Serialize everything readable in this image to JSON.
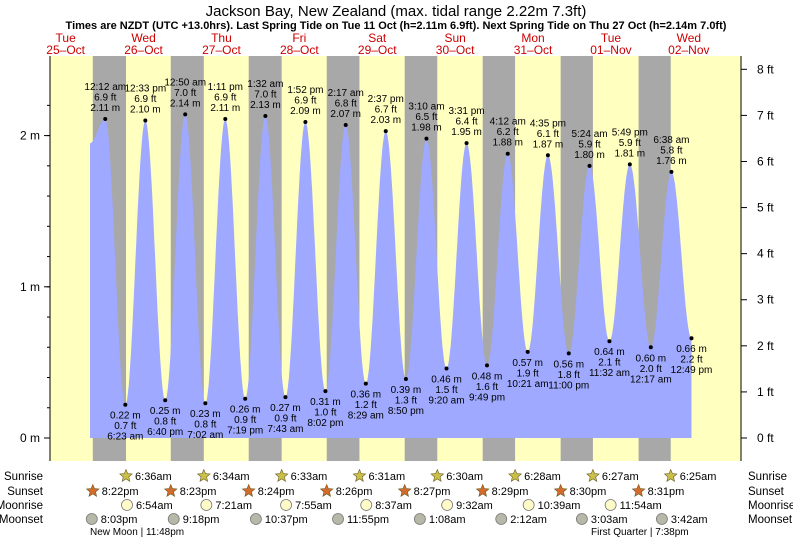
{
  "title": "Jackson Bay, New Zealand (max. tidal range 2.22m 7.3ft)",
  "subtitle": "Times are NZDT (UTC +13.0hrs). Last Spring Tide on Tue 11 Oct (h=2.11m 6.9ft). Next Spring Tide on Thu 27 Oct (h=2.14m 7.0ft)",
  "colors": {
    "day": "#ffffc0",
    "night": "#a8a8a8",
    "tide": "#9ea9ff",
    "date_text": "#cc0000",
    "sunrise_star": "#c9c04a",
    "sunset_star": "#d36b2c",
    "moonrise": "#fffbc8",
    "moonset": "#b8b8a8"
  },
  "chart_data": {
    "type": "area",
    "title": "Jackson Bay, New Zealand (max. tidal range 2.22m 7.3ft)",
    "ylabel_left_unit": "m",
    "ylabel_right_unit": "ft",
    "ylim_m": [
      0,
      2.22
    ],
    "left_ticks": [
      "0 m",
      "1 m",
      "2 m"
    ],
    "right_ticks": [
      "0 ft",
      "1 ft",
      "2 ft",
      "3 ft",
      "4 ft",
      "5 ft",
      "6 ft",
      "7 ft",
      "8 ft"
    ],
    "days": [
      {
        "dow": "Tue",
        "date": "25–Oct"
      },
      {
        "dow": "Wed",
        "date": "26–Oct"
      },
      {
        "dow": "Thu",
        "date": "27–Oct"
      },
      {
        "dow": "Fri",
        "date": "28–Oct"
      },
      {
        "dow": "Sat",
        "date": "29–Oct"
      },
      {
        "dow": "Sun",
        "date": "30–Oct"
      },
      {
        "dow": "Mon",
        "date": "31–Oct"
      },
      {
        "dow": "Tue",
        "date": "01–Nov"
      },
      {
        "dow": "Wed",
        "date": "02–Nov"
      }
    ],
    "tides": [
      {
        "type": "high",
        "day": 1,
        "time": "12:12 am",
        "m": "2.11 m",
        "ft": "6.9 ft",
        "h": 2.11
      },
      {
        "type": "low",
        "day": 1,
        "time": "6:23 am",
        "m": "0.22 m",
        "ft": "0.7 ft",
        "h": 0.22
      },
      {
        "type": "high",
        "day": 1,
        "time": "12:33 pm",
        "m": "2.10 m",
        "ft": "6.9 ft",
        "h": 2.1
      },
      {
        "type": "low",
        "day": 1,
        "time": "6:40 pm",
        "m": "0.25 m",
        "ft": "0.8 ft",
        "h": 0.25
      },
      {
        "type": "high",
        "day": 2,
        "time": "12:50 am",
        "m": "2.14 m",
        "ft": "7.0 ft",
        "h": 2.14
      },
      {
        "type": "low",
        "day": 2,
        "time": "7:02 am",
        "m": "0.23 m",
        "ft": "0.8 ft",
        "h": 0.23
      },
      {
        "type": "high",
        "day": 2,
        "time": "1:11 pm",
        "m": "2.11 m",
        "ft": "6.9 ft",
        "h": 2.11
      },
      {
        "type": "low",
        "day": 2,
        "time": "7:19 pm",
        "m": "0.26 m",
        "ft": "0.9 ft",
        "h": 0.26
      },
      {
        "type": "high",
        "day": 3,
        "time": "1:32 am",
        "m": "2.13 m",
        "ft": "7.0 ft",
        "h": 2.13
      },
      {
        "type": "low",
        "day": 3,
        "time": "7:43 am",
        "m": "0.27 m",
        "ft": "0.9 ft",
        "h": 0.27
      },
      {
        "type": "high",
        "day": 3,
        "time": "1:52 pm",
        "m": "2.09 m",
        "ft": "6.9 ft",
        "h": 2.09
      },
      {
        "type": "low",
        "day": 3,
        "time": "8:02 pm",
        "m": "0.31 m",
        "ft": "1.0 ft",
        "h": 0.31
      },
      {
        "type": "high",
        "day": 4,
        "time": "2:17 am",
        "m": "2.07 m",
        "ft": "6.8 ft",
        "h": 2.07
      },
      {
        "type": "low",
        "day": 4,
        "time": "8:29 am",
        "m": "0.36 m",
        "ft": "1.2 ft",
        "h": 0.36
      },
      {
        "type": "high",
        "day": 4,
        "time": "2:37 pm",
        "m": "2.03 m",
        "ft": "6.7 ft",
        "h": 2.03
      },
      {
        "type": "low",
        "day": 4,
        "time": "8:50 pm",
        "m": "0.39 m",
        "ft": "1.3 ft",
        "h": 0.39
      },
      {
        "type": "high",
        "day": 5,
        "time": "3:10 am",
        "m": "1.98 m",
        "ft": "6.5 ft",
        "h": 1.98
      },
      {
        "type": "low",
        "day": 5,
        "time": "9:20 am",
        "m": "0.46 m",
        "ft": "1.5 ft",
        "h": 0.46
      },
      {
        "type": "high",
        "day": 5,
        "time": "3:31 pm",
        "m": "1.95 m",
        "ft": "6.4 ft",
        "h": 1.95
      },
      {
        "type": "low",
        "day": 5,
        "time": "9:49 pm",
        "m": "0.48 m",
        "ft": "1.6 ft",
        "h": 0.48
      },
      {
        "type": "high",
        "day": 6,
        "time": "4:12 am",
        "m": "1.88 m",
        "ft": "6.2 ft",
        "h": 1.88
      },
      {
        "type": "low",
        "day": 6,
        "time": "10:21 am",
        "m": "0.57 m",
        "ft": "1.9 ft",
        "h": 0.57
      },
      {
        "type": "high",
        "day": 6,
        "time": "4:35 pm",
        "m": "1.87 m",
        "ft": "6.1 ft",
        "h": 1.87
      },
      {
        "type": "low",
        "day": 6,
        "time": "11:00 pm",
        "m": "0.56 m",
        "ft": "1.8 ft",
        "h": 0.56
      },
      {
        "type": "high",
        "day": 7,
        "time": "5:24 am",
        "m": "1.80 m",
        "ft": "5.9 ft",
        "h": 1.8
      },
      {
        "type": "low",
        "day": 7,
        "time": "11:32 am",
        "m": "0.64 m",
        "ft": "2.1 ft",
        "h": 0.64
      },
      {
        "type": "high",
        "day": 7,
        "time": "5:49 pm",
        "m": "1.81 m",
        "ft": "5.9 ft",
        "h": 1.81
      },
      {
        "type": "low",
        "day": 8,
        "time": "12:17 am",
        "m": "0.60 m",
        "ft": "2.0 ft",
        "h": 0.6
      },
      {
        "type": "high",
        "day": 8,
        "time": "6:38 am",
        "m": "1.76 m",
        "ft": "5.8 ft",
        "h": 1.76
      },
      {
        "type": "low",
        "day": 8,
        "time": "12:49 pm",
        "m": "0.66 m",
        "ft": "2.2 ft",
        "h": 0.66
      }
    ]
  },
  "almanac": {
    "labels": {
      "sunrise": "Sunrise",
      "sunset": "Sunset",
      "moonrise": "Moonrise",
      "moonset": "Moonset"
    },
    "sunrise": [
      {
        "day": 1,
        "time": "6:36am"
      },
      {
        "day": 2,
        "time": "6:34am"
      },
      {
        "day": 3,
        "time": "6:33am"
      },
      {
        "day": 4,
        "time": "6:31am"
      },
      {
        "day": 5,
        "time": "6:30am"
      },
      {
        "day": 6,
        "time": "6:28am"
      },
      {
        "day": 7,
        "time": "6:27am"
      },
      {
        "day": 8,
        "time": "6:25am"
      }
    ],
    "sunset": [
      {
        "day": 0,
        "time": "8:22pm"
      },
      {
        "day": 1,
        "time": "8:23pm"
      },
      {
        "day": 2,
        "time": "8:24pm"
      },
      {
        "day": 3,
        "time": "8:26pm"
      },
      {
        "day": 4,
        "time": "8:27pm"
      },
      {
        "day": 5,
        "time": "8:29pm"
      },
      {
        "day": 6,
        "time": "8:30pm"
      },
      {
        "day": 7,
        "time": "8:31pm"
      }
    ],
    "moonrise": [
      {
        "day": 1,
        "time": "6:54am"
      },
      {
        "day": 2,
        "time": "7:21am"
      },
      {
        "day": 3,
        "time": "7:55am"
      },
      {
        "day": 4,
        "time": "8:37am"
      },
      {
        "day": 5,
        "time": "9:32am"
      },
      {
        "day": 6,
        "time": "10:39am"
      },
      {
        "day": 7,
        "time": "11:54am"
      }
    ],
    "moonset": [
      {
        "day": 0,
        "time": "8:03pm"
      },
      {
        "day": 1,
        "time": "9:18pm"
      },
      {
        "day": 2,
        "time": "10:37pm"
      },
      {
        "day": 3,
        "time": "11:55pm"
      },
      {
        "day": 5,
        "time": "1:08am"
      },
      {
        "day": 6,
        "time": "2:12am"
      },
      {
        "day": 7,
        "time": "3:03am"
      },
      {
        "day": 8,
        "time": "3:42am"
      }
    ],
    "moon_phases": [
      {
        "text": "New Moon | 11:48pm"
      },
      {
        "text": "First Quarter | 7:38pm"
      }
    ]
  }
}
